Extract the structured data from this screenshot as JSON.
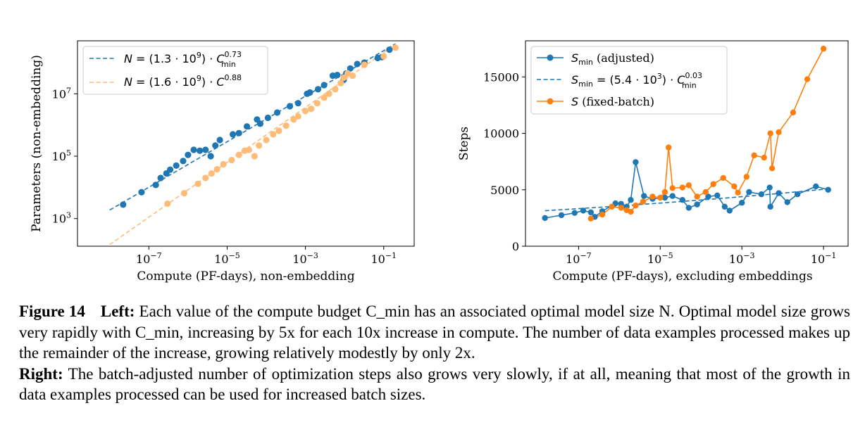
{
  "chart_data": [
    {
      "type": "scatter",
      "xlabel": "Compute (PF-days), non-embedding",
      "ylabel": "Parameters (non-embedding)",
      "xscale": "log",
      "yscale": "log",
      "xlim": [
        1.5e-09,
        0.6
      ],
      "ylim": [
        130.0,
        500000000.0
      ],
      "xticks": [
        1e-07,
        1e-05,
        0.001,
        0.1
      ],
      "xtick_labels": [
        "10^−7",
        "10^−5",
        "10^−3",
        "10^−1"
      ],
      "yticks": [
        1000.0,
        100000.0,
        10000000.0
      ],
      "ytick_labels": [
        "10^3",
        "10^5",
        "10^7"
      ],
      "grid": false,
      "legend_position": "top-left",
      "legend": [
        "N = (1.3 · 10^9) · C_min^0.73",
        "N = (1.6 · 10^9) · C^0.88"
      ],
      "fits": [
        {
          "name": "N = (1.3 · 10^9) · C_min^0.73",
          "color": "#1f77b4",
          "coef": 1300000000.0,
          "exponent": 0.73,
          "x_range": [
            1e-08,
            0.2
          ]
        },
        {
          "name": "N = (1.6 · 10^9) · C^0.88",
          "color": "#ffbb78",
          "coef": 1600000000.0,
          "exponent": 0.88,
          "x_range": [
            1e-08,
            0.2
          ]
        }
      ],
      "series": [
        {
          "color": "#1f77b4",
          "points": [
            [
              2.2e-08,
              2800.0
            ],
            [
              6.5e-08,
              7000.0
            ],
            [
              1.5e-07,
              12000.0
            ],
            [
              2e-07,
              20000.0
            ],
            [
              2.8e-07,
              28000.0
            ],
            [
              3.5e-07,
              37000.0
            ],
            [
              5e-07,
              50000.0
            ],
            [
              7.5e-07,
              70000.0
            ],
            [
              1e-06,
              110000.0
            ],
            [
              1.4e-06,
              160000.0
            ],
            [
              2e-06,
              150000.0
            ],
            [
              2.8e-06,
              160000.0
            ],
            [
              3.8e-06,
              100000.0
            ],
            [
              5e-06,
              220000.0
            ],
            [
              6.5e-06,
              330000.0
            ],
            [
              1.4e-05,
              500000.0
            ],
            [
              2e-05,
              550000.0
            ],
            [
              3.2e-05,
              900000.0
            ],
            [
              5.8e-05,
              1500000.0
            ],
            [
              7e-05,
              1100000.0
            ],
            [
              0.00011,
              1700000.0
            ],
            [
              0.00019,
              2500000.0
            ],
            [
              0.0004,
              4000000.0
            ],
            [
              0.00065,
              5000000.0
            ],
            [
              0.0011,
              10000000.0
            ],
            [
              0.0013,
              11000000.0
            ],
            [
              0.0021,
              14000000.0
            ],
            [
              0.003,
              19000000.0
            ],
            [
              0.005,
              38000000.0
            ],
            [
              0.0065,
              40000000.0
            ],
            [
              0.0095,
              28000000.0
            ],
            [
              0.011,
              45000000.0
            ],
            [
              0.014,
              65000000.0
            ],
            [
              0.021,
              90000000.0
            ],
            [
              0.032,
              100000000.0
            ],
            [
              0.07,
              140000000.0
            ],
            [
              0.09,
              150000000.0
            ],
            [
              0.14,
              260000000.0
            ]
          ]
        },
        {
          "color": "#ffbb78",
          "points": [
            [
              3e-07,
              3000.0
            ],
            [
              8e-07,
              6500.0
            ],
            [
              1.8e-06,
              13000.0
            ],
            [
              2.8e-06,
              20000.0
            ],
            [
              4e-06,
              28000.0
            ],
            [
              5.5e-06,
              38000.0
            ],
            [
              8e-06,
              55000.0
            ],
            [
              1.3e-05,
              75000.0
            ],
            [
              2e-05,
              110000.0
            ],
            [
              2.8e-05,
              150000.0
            ],
            [
              3.6e-05,
              160000.0
            ],
            [
              5e-05,
              100000.0
            ],
            [
              6.5e-05,
              220000.0
            ],
            [
              0.0001,
              330000.0
            ],
            [
              0.00015,
              500000.0
            ],
            [
              0.00021,
              650000.0
            ],
            [
              0.00032,
              950000.0
            ],
            [
              0.0005,
              1500000.0
            ],
            [
              0.00065,
              1900000.0
            ],
            [
              0.001,
              2800000.0
            ],
            [
              0.0014,
              3300000.0
            ],
            [
              0.002,
              5000000.0
            ],
            [
              0.003,
              7500000.0
            ],
            [
              0.004,
              10000000.0
            ],
            [
              0.0058,
              14000000.0
            ],
            [
              0.008,
              22000000.0
            ],
            [
              0.0095,
              33000000.0
            ],
            [
              0.012,
              45000000.0
            ],
            [
              0.016,
              38000000.0
            ],
            [
              0.032,
              85000000.0
            ],
            [
              0.1,
              160000000.0
            ],
            [
              0.2,
              300000000.0
            ]
          ]
        }
      ]
    },
    {
      "type": "line",
      "xlabel": "Compute (PF-days), excluding embeddings",
      "ylabel": "Steps",
      "xscale": "log",
      "yscale": "linear",
      "xlim": [
        5e-09,
        0.4
      ],
      "ylim": [
        0,
        18200
      ],
      "xticks": [
        1e-07,
        1e-05,
        0.001,
        0.1
      ],
      "xtick_labels": [
        "10^−7",
        "10^−5",
        "10^−3",
        "10^−1"
      ],
      "yticks": [
        0,
        5000,
        10000,
        15000
      ],
      "ytick_labels": [
        "0",
        "5000",
        "10000",
        "15000"
      ],
      "grid": false,
      "legend_position": "top-left",
      "legend": [
        "S_min (adjusted)",
        "S_min = (5.4 · 10^3) · C_min^0.03",
        "S (fixed-batch)"
      ],
      "fit": {
        "name": "S_min = (5.4 · 10^3) · C_min^0.03",
        "color": "#1f77b4",
        "coef": 5400,
        "exponent": 0.03,
        "x_range": [
          1.5e-08,
          0.15
        ]
      },
      "series": [
        {
          "name": "S_min (adjusted)",
          "color": "#1f77b4",
          "points": [
            [
              1.5e-08,
              2500
            ],
            [
              3.8e-08,
              2750
            ],
            [
              8e-08,
              2950
            ],
            [
              1.3e-07,
              3150
            ],
            [
              2e-07,
              3000
            ],
            [
              2.5e-07,
              2600
            ],
            [
              3.8e-07,
              3100
            ],
            [
              8e-07,
              3800
            ],
            [
              1.1e-06,
              3750
            ],
            [
              1.5e-06,
              3500
            ],
            [
              1.9e-06,
              4100
            ],
            [
              2.5e-06,
              7450
            ],
            [
              4e-06,
              4450
            ],
            [
              6.5e-06,
              4200
            ],
            [
              1.3e-05,
              4300
            ],
            [
              2e-05,
              4450
            ],
            [
              3.5e-05,
              4100
            ],
            [
              5e-05,
              3400
            ],
            [
              8e-05,
              3700
            ],
            [
              0.00015,
              4400
            ],
            [
              0.00025,
              4500
            ],
            [
              0.00038,
              3500
            ],
            [
              0.0005,
              3150
            ],
            [
              0.001,
              3850
            ],
            [
              0.0015,
              4800
            ],
            [
              0.003,
              4600
            ],
            [
              0.0048,
              5200
            ],
            [
              0.005,
              3500
            ],
            [
              0.008,
              4700
            ],
            [
              0.013,
              3900
            ],
            [
              0.023,
              4600
            ],
            [
              0.065,
              5300
            ],
            [
              0.13,
              5000
            ]
          ]
        },
        {
          "name": "S (fixed-batch)",
          "color": "#ff7f0e",
          "points": [
            [
              2e-07,
              2450
            ],
            [
              3.8e-07,
              2800
            ],
            [
              6.5e-07,
              3500
            ],
            [
              1.1e-06,
              3400
            ],
            [
              1.5e-06,
              3200
            ],
            [
              1.9e-06,
              3050
            ],
            [
              2.5e-06,
              3600
            ],
            [
              3.8e-06,
              3950
            ],
            [
              6.5e-06,
              4400
            ],
            [
              1e-05,
              4300
            ],
            [
              1.3e-05,
              4800
            ],
            [
              1.6e-05,
              8750
            ],
            [
              2e-05,
              5150
            ],
            [
              3.5e-05,
              5200
            ],
            [
              5e-05,
              5400
            ],
            [
              8e-05,
              4400
            ],
            [
              0.00013,
              4800
            ],
            [
              0.0002,
              5500
            ],
            [
              0.00035,
              6050
            ],
            [
              0.00065,
              5300
            ],
            [
              0.0008,
              4750
            ],
            [
              0.0013,
              6150
            ],
            [
              0.002,
              8050
            ],
            [
              0.0035,
              7850
            ],
            [
              0.005,
              10000
            ],
            [
              0.0055,
              6900
            ],
            [
              0.008,
              10100
            ],
            [
              0.018,
              11850
            ],
            [
              0.04,
              14800
            ],
            [
              0.1,
              17500
            ]
          ]
        }
      ]
    }
  ],
  "caption": {
    "fig_label": "Figure 14",
    "left_label": "Left:",
    "left_text": "Each value of the compute budget C_min has an associated optimal model size N. Optimal model size grows very rapidly with C_min, increasing by 5x for each 10x increase in compute. The number of data examples processed makes up the remainder of the increase, growing relatively modestly by only 2x.",
    "right_label": "Right:",
    "right_text": "The batch-adjusted number of optimization steps also grows very slowly, if at all, meaning that most of the growth in data examples processed can be used for increased batch sizes."
  }
}
